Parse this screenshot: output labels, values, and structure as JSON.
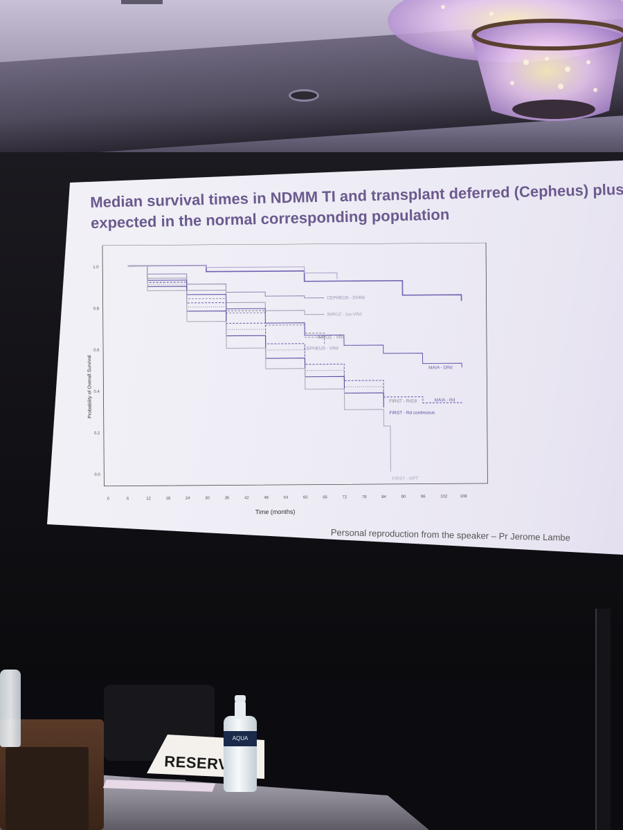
{
  "slide": {
    "title_line1": "Median survival times in NDMM TI and transplant deferred (Cepheus) plus",
    "title_line2": "expected in the normal corresponding population",
    "footnote": "Personal reproduction from the speaker – Pr Jerome Lambe"
  },
  "card": {
    "text": "RESERV"
  },
  "bottle": {
    "label": "AQUA"
  },
  "colors": {
    "title": "#6b5a8e",
    "curve_purple": "#7060b0",
    "curve_grey": "#9a9aa6"
  },
  "chart_data": {
    "type": "line",
    "ylabel": "Probability of Overall Survival",
    "xlabel": "Time (months)",
    "xlim": [
      0,
      108
    ],
    "ylim": [
      0.0,
      1.0
    ],
    "xticks": [
      "0",
      "6",
      "12",
      "18",
      "24",
      "30",
      "36",
      "42",
      "48",
      "54",
      "60",
      "66",
      "72",
      "78",
      "84",
      "90",
      "96",
      "102",
      "108"
    ],
    "yticks": [
      "0.0",
      "0.2",
      "0.4",
      "0.6",
      "0.8",
      "1.0"
    ],
    "series": [
      {
        "name": "",
        "style": "solid",
        "color": "#7060b0",
        "x": [
          6,
          30,
          60,
          90,
          108
        ],
        "y": [
          1.0,
          0.97,
          0.92,
          0.85,
          0.82
        ]
      },
      {
        "name": "",
        "style": "solid",
        "color": "#b6a6d0",
        "x": [
          6,
          30,
          60,
          70
        ],
        "y": [
          1.0,
          0.99,
          0.96,
          0.93
        ]
      },
      {
        "name": "CEPHEUS - DVRd",
        "style": "solid",
        "color": "#9a8fb8",
        "x": [
          6,
          12,
          24,
          36,
          48,
          60,
          66
        ],
        "y": [
          1.0,
          0.96,
          0.91,
          0.87,
          0.85,
          0.84,
          0.84
        ]
      },
      {
        "name": "IMROZ - Isa-VRd",
        "style": "solid",
        "color": "#a8a3b6",
        "x": [
          6,
          12,
          24,
          36,
          48,
          60,
          66
        ],
        "y": [
          1.0,
          0.94,
          0.88,
          0.82,
          0.78,
          0.76,
          0.76
        ]
      },
      {
        "name": "IMROZ - VRd",
        "style": "dashed",
        "color": "#8a8598",
        "x": [
          6,
          12,
          24,
          36,
          48,
          60,
          66
        ],
        "y": [
          1.0,
          0.93,
          0.86,
          0.78,
          0.72,
          0.67,
          0.63
        ]
      },
      {
        "name": "CEPHEUS - VRd",
        "style": "dashed",
        "color": "#9a8fb8",
        "x": [
          6,
          12,
          24,
          36,
          48,
          60,
          66
        ],
        "y": [
          1.0,
          0.92,
          0.84,
          0.77,
          0.71,
          0.65,
          0.61
        ]
      },
      {
        "name": "MAIA - DRd",
        "style": "solid",
        "color": "#7060b0",
        "x": [
          6,
          12,
          24,
          36,
          48,
          60,
          72,
          84,
          96,
          108
        ],
        "y": [
          1.0,
          0.93,
          0.86,
          0.79,
          0.72,
          0.66,
          0.61,
          0.57,
          0.52,
          0.5
        ]
      },
      {
        "name": "MAIA - Rd",
        "style": "dashed",
        "color": "#7060b0",
        "x": [
          6,
          12,
          24,
          36,
          48,
          60,
          72,
          84,
          96,
          108
        ],
        "y": [
          1.0,
          0.92,
          0.82,
          0.72,
          0.62,
          0.52,
          0.44,
          0.36,
          0.33,
          0.33
        ]
      },
      {
        "name": "FIRST - Rd18",
        "style": "dotted",
        "color": "#8a8598",
        "x": [
          6,
          12,
          24,
          36,
          48,
          60,
          72,
          84
        ],
        "y": [
          1.0,
          0.91,
          0.8,
          0.69,
          0.59,
          0.49,
          0.41,
          0.34
        ]
      },
      {
        "name": "FIRST - Rd continuous",
        "style": "solid",
        "color": "#5a4fa0",
        "x": [
          6,
          12,
          24,
          36,
          48,
          60,
          72,
          84
        ],
        "y": [
          1.0,
          0.9,
          0.78,
          0.66,
          0.55,
          0.46,
          0.38,
          0.31
        ]
      },
      {
        "name": "FIRST - MPT",
        "style": "solid",
        "color": "#b0acbc",
        "x": [
          6,
          12,
          24,
          36,
          48,
          60,
          72,
          84,
          86,
          86
        ],
        "y": [
          1.0,
          0.88,
          0.73,
          0.6,
          0.5,
          0.4,
          0.3,
          0.22,
          0.2,
          0.0
        ]
      }
    ]
  }
}
